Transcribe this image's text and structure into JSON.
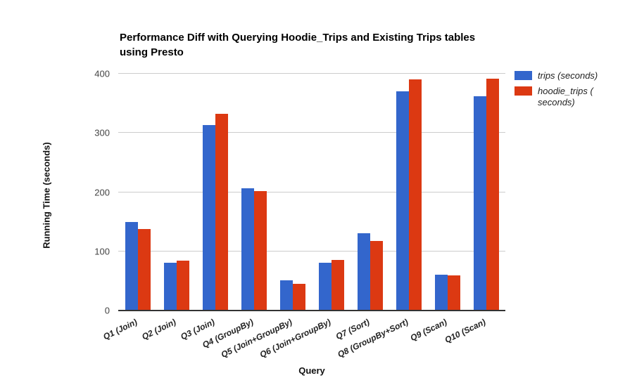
{
  "title": {
    "line1": "Performance Diff with Querying Hoodie_Trips and Existing Trips tables",
    "line2": "using Presto"
  },
  "axes": {
    "y_title": "Running Time (seconds)",
    "x_title": "Query"
  },
  "legend": {
    "items": [
      {
        "label": "trips (seconds)",
        "lines": [
          "trips (seconds)"
        ],
        "color": "#3366CC"
      },
      {
        "label": "hoodie_trips (seconds)",
        "lines": [
          "hoodie_trips (",
          "seconds)"
        ],
        "color": "#DC3912"
      }
    ]
  },
  "colors": {
    "series_trips": "#3366CC",
    "series_hoodie_trips": "#DC3912",
    "gridline": "#CCCCCC",
    "axis_baseline": "#333333",
    "y_tick_label": "#444444",
    "x_tick_label": "#222222",
    "title_text": "#000000"
  },
  "chart_data": {
    "type": "bar",
    "title": "Performance Diff with Querying Hoodie_Trips and Existing Trips tables using Presto",
    "xlabel": "Query",
    "ylabel": "Running Time (seconds)",
    "ylim": [
      0,
      400
    ],
    "yticks": [
      0,
      100,
      200,
      300,
      400
    ],
    "grid": true,
    "legend_position": "right",
    "categories": [
      "Q1 (Join)",
      "Q2 (Join)",
      "Q3 (Join)",
      "Q4 (GroupBy)",
      "Q5 (Join+GroupBy)",
      "Q6 (Join+GroupBy)",
      "Q7 (Sort)",
      "Q8 (GroupBy+Sort)",
      "Q9 (Scan)",
      "Q10 (Scan)"
    ],
    "series": [
      {
        "name": "trips (seconds)",
        "color": "#3366CC",
        "values": [
          150,
          81,
          313,
          207,
          51,
          81,
          131,
          370,
          60,
          362
        ]
      },
      {
        "name": "hoodie_trips (seconds)",
        "color": "#DC3912",
        "values": [
          138,
          84,
          332,
          202,
          45,
          85,
          117,
          390,
          59,
          392
        ]
      }
    ]
  }
}
